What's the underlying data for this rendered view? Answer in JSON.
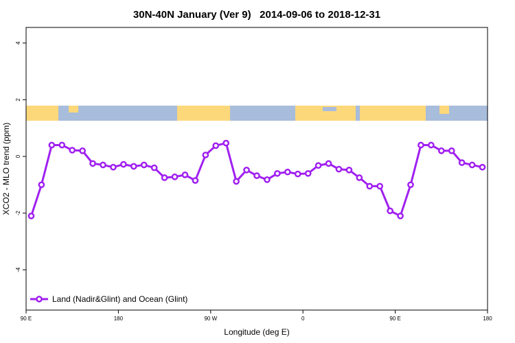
{
  "chart_data": {
    "type": "line",
    "title": "30N-40N January (Ver 9)   2014-09-06 to 2018-12-31",
    "xlabel": "Longitude (deg E)",
    "ylabel": "XCO2 - MLO trend (ppm)",
    "xlim": [
      90,
      540
    ],
    "ylim": [
      -5.42,
      4.55
    ],
    "xticks": [
      {
        "value": 90,
        "label": "90 E"
      },
      180,
      {
        "value": 270,
        "label": "90 W"
      },
      {
        "value": 360,
        "label": "0"
      },
      {
        "value": 450,
        "label": "90 E"
      },
      {
        "value": 540,
        "label": "180"
      }
    ],
    "yticks": [
      -4,
      -2,
      0,
      2,
      4
    ],
    "legend": "bottomleft",
    "x": [
      95,
      105,
      115,
      125,
      135,
      145,
      155,
      165,
      175,
      185,
      195,
      205,
      215,
      225,
      235,
      245,
      255,
      265,
      275,
      285,
      295,
      305,
      315,
      325,
      335,
      345,
      355,
      365,
      375,
      385,
      395,
      405,
      415,
      425,
      435,
      445,
      455,
      465,
      475,
      485,
      495,
      505,
      515,
      525,
      535
    ],
    "series": [
      {
        "name": "Land (Nadir&Glint) and Ocean (Glint)",
        "color": "#a020f0",
        "values": [
          -2.1,
          -1.0,
          0.4,
          0.4,
          0.22,
          0.2,
          -0.25,
          -0.3,
          -0.38,
          -0.28,
          -0.35,
          -0.3,
          -0.4,
          -0.75,
          -0.72,
          -0.65,
          -0.85,
          0.05,
          0.38,
          0.47,
          -0.88,
          -0.48,
          -0.68,
          -0.82,
          -0.6,
          -0.55,
          -0.62,
          -0.6,
          -0.32,
          -0.25,
          -0.45,
          -0.48,
          -0.75,
          -1.05,
          -1.05,
          -1.92,
          -2.1,
          -1.0,
          0.4,
          0.4,
          0.2,
          0.2,
          -0.22,
          -0.3,
          -0.38
        ]
      }
    ]
  }
}
